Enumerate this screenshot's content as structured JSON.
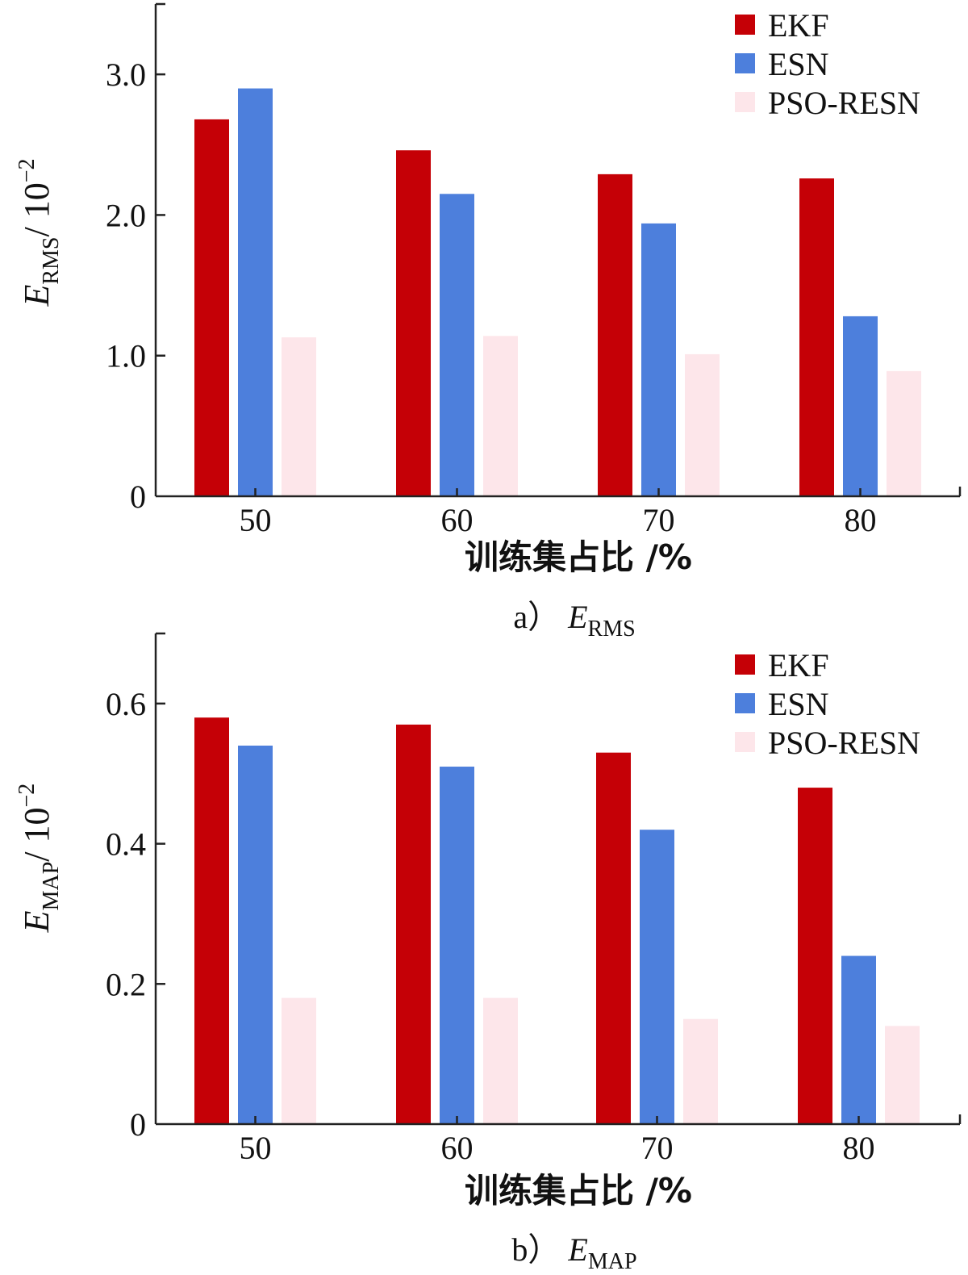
{
  "colors": {
    "EKF": "#c50006",
    "ESN": "#4d7fdc",
    "PSO-RESN": "#fde6ea"
  },
  "chart_data": [
    {
      "type": "bar",
      "panel": "a",
      "categories": [
        "50",
        "60",
        "70",
        "80"
      ],
      "series": [
        {
          "name": "EKF",
          "values": [
            2.68,
            2.46,
            2.29,
            2.26
          ]
        },
        {
          "name": "ESN",
          "values": [
            2.9,
            2.15,
            1.94,
            1.28
          ]
        },
        {
          "name": "PSO-RESN",
          "values": [
            1.13,
            1.14,
            1.01,
            0.89
          ]
        }
      ],
      "yticks": [
        "0",
        "1.0",
        "2.0",
        "3.0"
      ],
      "ytick_values": [
        0,
        1,
        2,
        3
      ],
      "ylim": [
        0,
        3.5
      ],
      "ylabel": {
        "main": "E",
        "sub": "RMS",
        "rest": "/ 10",
        "sup": "−2"
      },
      "xlabel": "训练集占比 /%",
      "caption": {
        "prefix": "a）",
        "main": "E",
        "sub": "RMS"
      },
      "legend": {
        "position": "top-right",
        "entries": [
          "EKF",
          "ESN",
          "PSO-RESN"
        ]
      }
    },
    {
      "type": "bar",
      "panel": "b",
      "categories": [
        "50",
        "60",
        "70",
        "80"
      ],
      "series": [
        {
          "name": "EKF",
          "values": [
            0.58,
            0.57,
            0.53,
            0.48
          ]
        },
        {
          "name": "ESN",
          "values": [
            0.54,
            0.51,
            0.42,
            0.24
          ]
        },
        {
          "name": "PSO-RESN",
          "values": [
            0.18,
            0.18,
            0.15,
            0.14
          ]
        }
      ],
      "yticks": [
        "0",
        "0.2",
        "0.4",
        "0.6"
      ],
      "ytick_values": [
        0,
        0.2,
        0.4,
        0.6
      ],
      "ylim": [
        0,
        0.7
      ],
      "ylabel": {
        "main": "E",
        "sub": "MAP",
        "rest": "/ 10",
        "sup": "−2"
      },
      "xlabel": "训练集占比 /%",
      "caption": {
        "prefix": "b）",
        "main": "E",
        "sub": "MAP"
      },
      "legend": {
        "position": "top-right",
        "entries": [
          "EKF",
          "ESN",
          "PSO-RESN"
        ]
      }
    }
  ]
}
